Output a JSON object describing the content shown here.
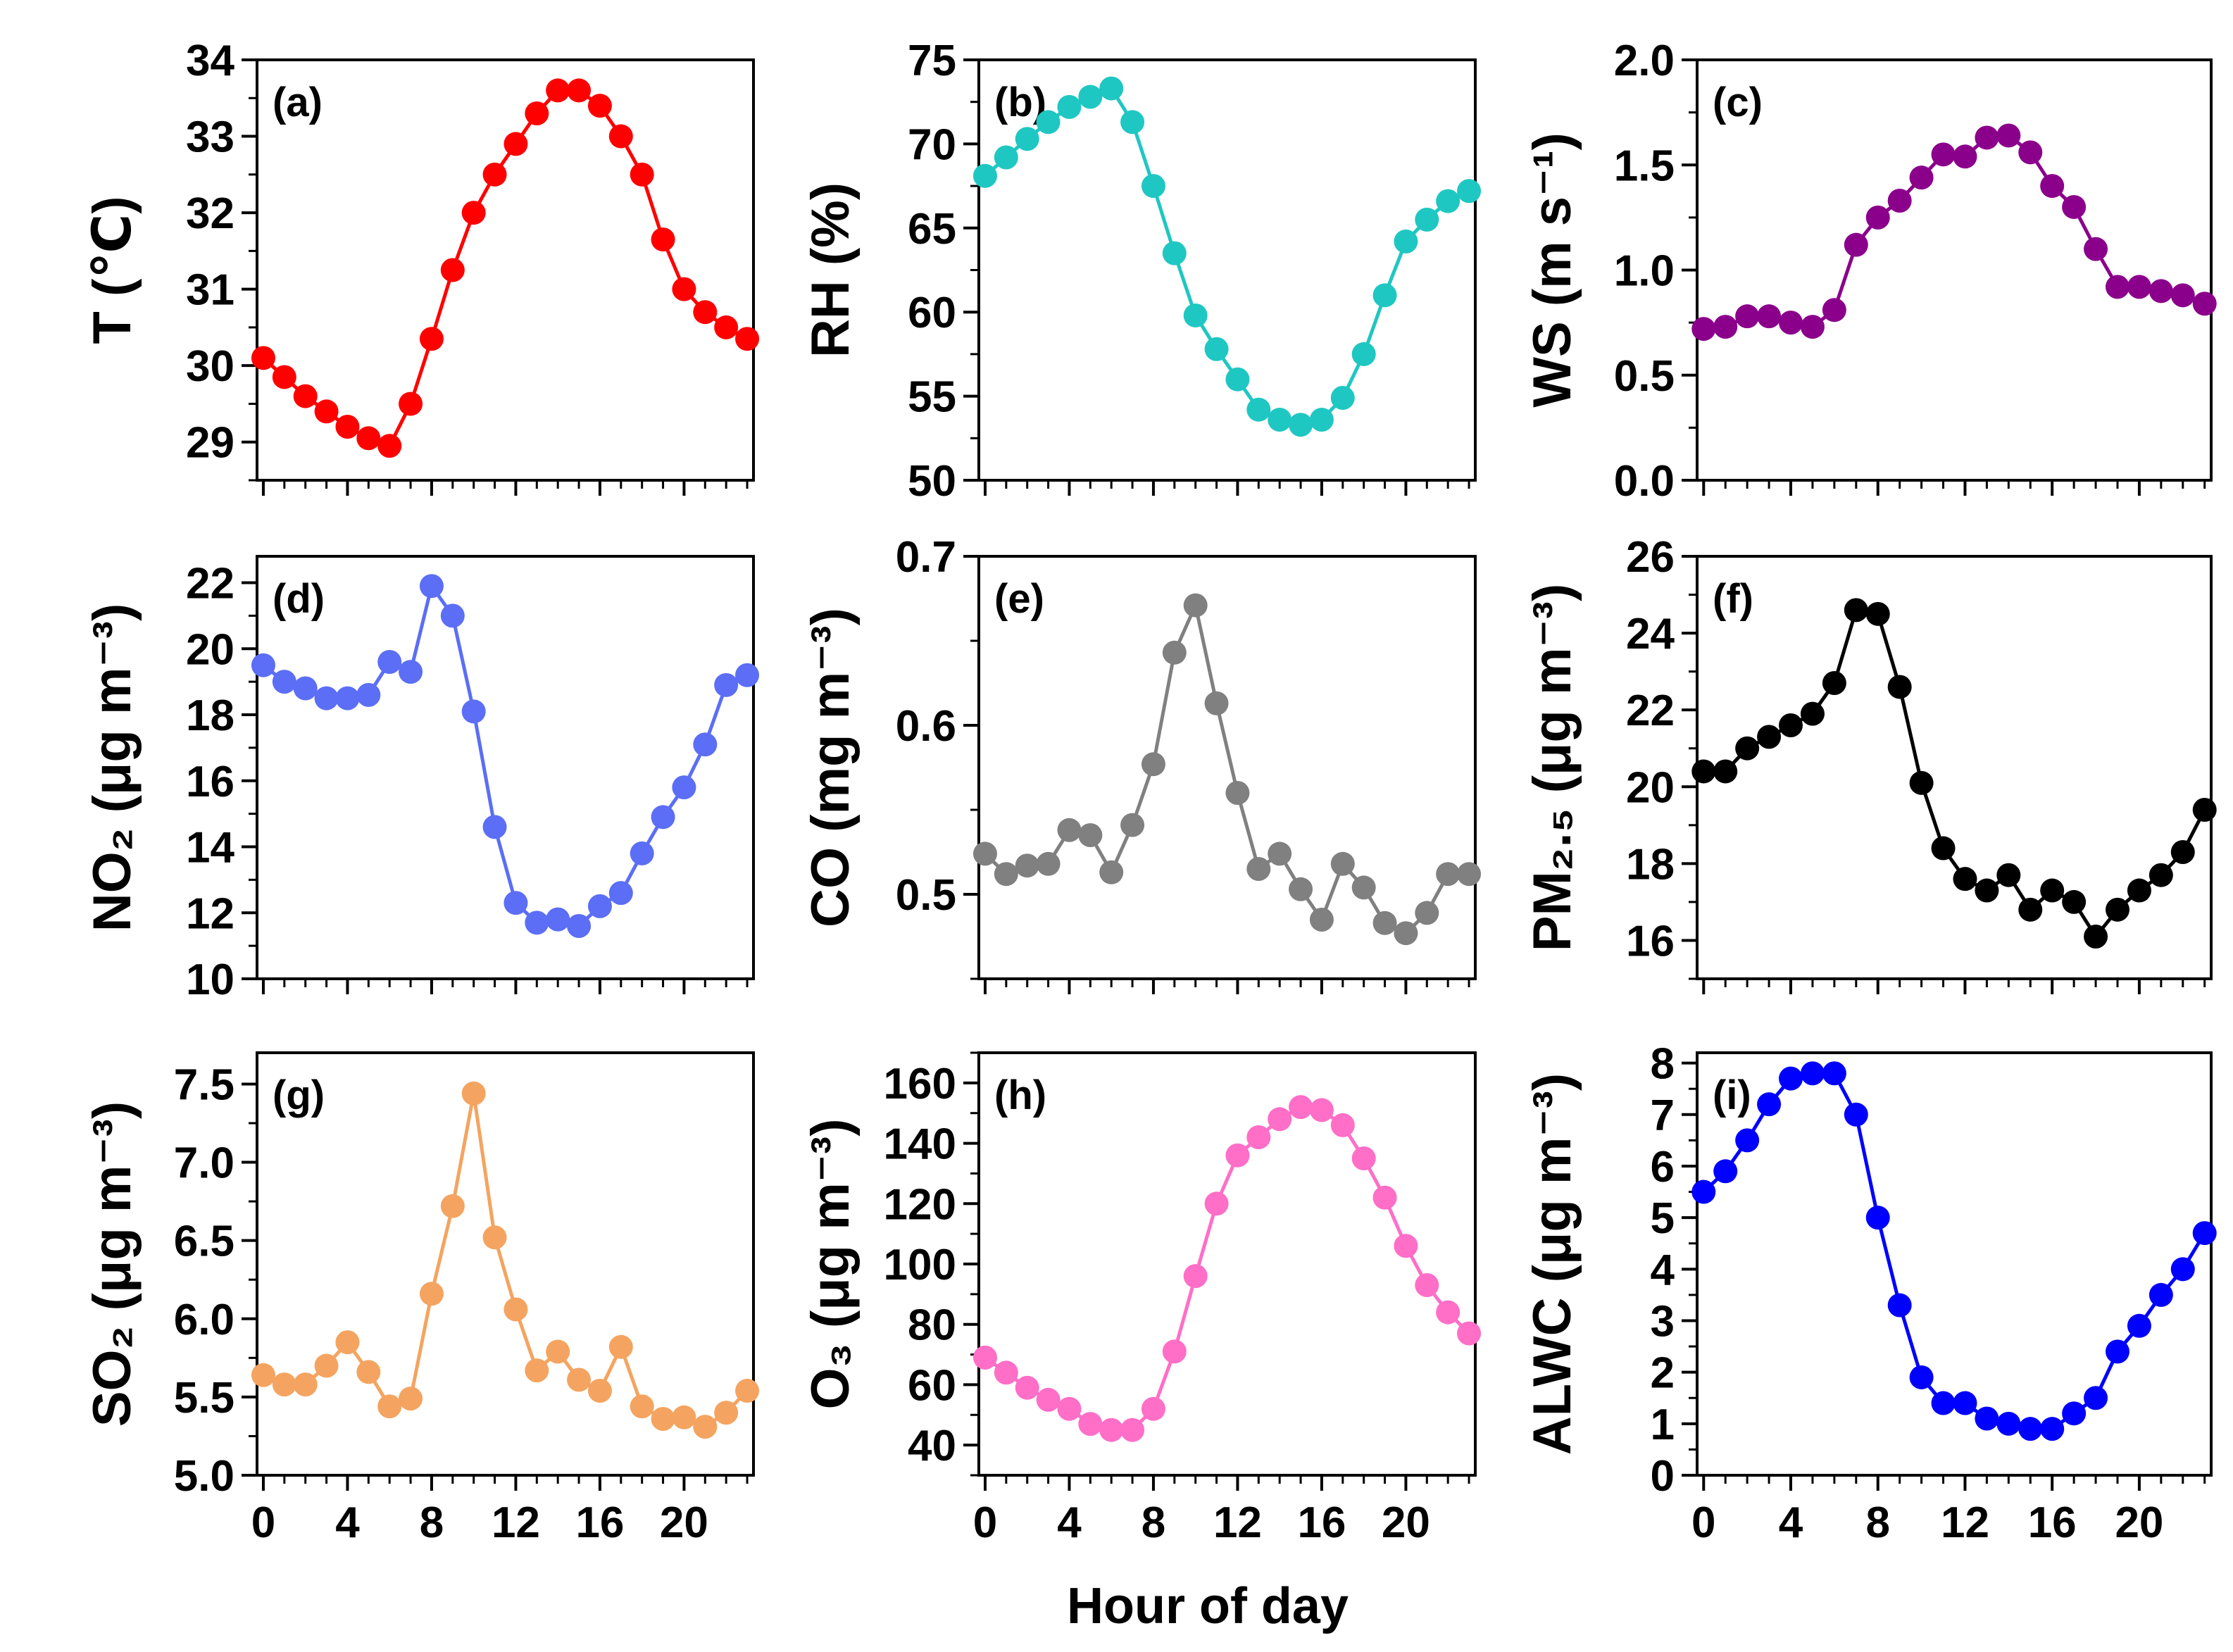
{
  "figure": {
    "x_axis_label": "Hour of day"
  },
  "chart_data": [
    {
      "id": "a",
      "type": "line",
      "panel_label": "(a)",
      "color": "#ff0000",
      "ylabel": "T (℃)",
      "ylim": [
        28.5,
        34
      ],
      "yticks": [
        "29",
        "30",
        "31",
        "32",
        "33",
        "34"
      ],
      "xlim": [
        -0.3,
        23.3
      ],
      "xticks": [
        "0",
        "4",
        "8",
        "12",
        "16",
        "20"
      ],
      "x": [
        0,
        1,
        2,
        3,
        4,
        5,
        6,
        7,
        8,
        9,
        10,
        11,
        12,
        13,
        14,
        15,
        16,
        17,
        18,
        19,
        20,
        21,
        22,
        23
      ],
      "values": [
        30.1,
        29.85,
        29.6,
        29.4,
        29.2,
        29.05,
        28.95,
        29.5,
        30.35,
        31.25,
        32.0,
        32.5,
        32.9,
        33.3,
        33.6,
        33.6,
        33.4,
        33.0,
        32.5,
        31.65,
        31.0,
        30.7,
        30.5,
        30.35
      ]
    },
    {
      "id": "b",
      "type": "line",
      "panel_label": "(b)",
      "color": "#1fc7c2",
      "ylabel": "RH (%)",
      "ylim": [
        50,
        75
      ],
      "yticks": [
        "50",
        "55",
        "60",
        "65",
        "70",
        "75"
      ],
      "xlim": [
        -0.3,
        23.3
      ],
      "xticks": [
        "0",
        "4",
        "8",
        "12",
        "16",
        "20"
      ],
      "x": [
        0,
        1,
        2,
        3,
        4,
        5,
        6,
        7,
        8,
        9,
        10,
        11,
        12,
        13,
        14,
        15,
        16,
        17,
        18,
        19,
        20,
        21,
        22,
        23
      ],
      "values": [
        68.1,
        69.2,
        70.3,
        71.3,
        72.2,
        72.8,
        73.3,
        71.3,
        67.5,
        63.5,
        59.8,
        57.8,
        56.0,
        54.2,
        53.6,
        53.3,
        53.6,
        54.9,
        57.5,
        61.0,
        64.2,
        65.5,
        66.6,
        67.2
      ]
    },
    {
      "id": "c",
      "type": "line",
      "panel_label": "(c)",
      "color": "#8b008b",
      "ylabel": "WS (m s⁻¹)",
      "ylim": [
        0,
        2.0
      ],
      "yticks": [
        "0.0",
        "0.5",
        "1.0",
        "1.5",
        "2.0"
      ],
      "xlim": [
        -0.3,
        23.3
      ],
      "xticks": [
        "0",
        "4",
        "8",
        "12",
        "16",
        "20"
      ],
      "x": [
        0,
        1,
        2,
        3,
        4,
        5,
        6,
        7,
        8,
        9,
        10,
        11,
        12,
        13,
        14,
        15,
        16,
        17,
        18,
        19,
        20,
        21,
        22,
        23
      ],
      "values": [
        0.72,
        0.73,
        0.78,
        0.78,
        0.75,
        0.73,
        0.81,
        1.12,
        1.25,
        1.33,
        1.44,
        1.55,
        1.54,
        1.63,
        1.64,
        1.56,
        1.4,
        1.3,
        1.1,
        0.92,
        0.92,
        0.9,
        0.88,
        0.84
      ]
    },
    {
      "id": "d",
      "type": "line",
      "panel_label": "(d)",
      "color": "#5b6ef5",
      "ylabel": "NO₂ (μg m⁻³)",
      "ylim": [
        10,
        22.8
      ],
      "yticks": [
        "10",
        "12",
        "14",
        "16",
        "18",
        "20",
        "22"
      ],
      "xlim": [
        -0.3,
        23.3
      ],
      "xticks": [
        "0",
        "4",
        "8",
        "12",
        "16",
        "20"
      ],
      "x": [
        0,
        1,
        2,
        3,
        4,
        5,
        6,
        7,
        8,
        9,
        10,
        11,
        12,
        13,
        14,
        15,
        16,
        17,
        18,
        19,
        20,
        21,
        22,
        23
      ],
      "values": [
        19.5,
        19.0,
        18.8,
        18.5,
        18.5,
        18.6,
        19.6,
        19.3,
        21.9,
        21.0,
        18.1,
        14.6,
        12.3,
        11.7,
        11.8,
        11.6,
        12.2,
        12.6,
        13.8,
        14.9,
        15.8,
        17.1,
        18.9,
        19.2
      ]
    },
    {
      "id": "e",
      "type": "line",
      "panel_label": "(e)",
      "color": "#808080",
      "ylabel": "CO (mg m⁻³)",
      "ylim": [
        0.45,
        0.7
      ],
      "yticks": [
        "0.5",
        "0.6",
        "0.7"
      ],
      "xlim": [
        -0.3,
        23.3
      ],
      "xticks": [
        "0",
        "4",
        "8",
        "12",
        "16",
        "20"
      ],
      "x": [
        0,
        1,
        2,
        3,
        4,
        5,
        6,
        7,
        8,
        9,
        10,
        11,
        12,
        13,
        14,
        15,
        16,
        17,
        18,
        19,
        20,
        21,
        22,
        23
      ],
      "values": [
        0.524,
        0.512,
        0.517,
        0.518,
        0.538,
        0.535,
        0.513,
        0.541,
        0.577,
        0.643,
        0.671,
        0.613,
        0.56,
        0.515,
        0.524,
        0.503,
        0.485,
        0.518,
        0.504,
        0.483,
        0.477,
        0.489,
        0.512,
        0.512
      ]
    },
    {
      "id": "f",
      "type": "line",
      "panel_label": "(f)",
      "color": "#000000",
      "ylabel": "PM₂.₅ (μg m⁻³)",
      "ylim": [
        15,
        26
      ],
      "yticks": [
        "16",
        "18",
        "20",
        "22",
        "24",
        "26"
      ],
      "xlim": [
        -0.3,
        23.3
      ],
      "xticks": [
        "0",
        "4",
        "8",
        "12",
        "16",
        "20"
      ],
      "x": [
        0,
        1,
        2,
        3,
        4,
        5,
        6,
        7,
        8,
        9,
        10,
        11,
        12,
        13,
        14,
        15,
        16,
        17,
        18,
        19,
        20,
        21,
        22,
        23
      ],
      "values": [
        20.4,
        20.4,
        21.0,
        21.3,
        21.6,
        21.9,
        22.7,
        24.6,
        24.5,
        22.6,
        20.1,
        18.4,
        17.6,
        17.3,
        17.7,
        16.8,
        17.3,
        17.0,
        16.1,
        16.8,
        17.3,
        17.7,
        18.3,
        19.4
      ]
    },
    {
      "id": "g",
      "type": "line",
      "panel_label": "(g)",
      "color": "#f4a460",
      "ylabel": "SO₂ (μg m⁻³)",
      "ylim": [
        5.0,
        7.7
      ],
      "yticks": [
        "5.0",
        "5.5",
        "6.0",
        "6.5",
        "7.0",
        "7.5"
      ],
      "xlim": [
        -0.3,
        23.3
      ],
      "xticks": [
        "0",
        "4",
        "8",
        "12",
        "16",
        "20"
      ],
      "x": [
        0,
        1,
        2,
        3,
        4,
        5,
        6,
        7,
        8,
        9,
        10,
        11,
        12,
        13,
        14,
        15,
        16,
        17,
        18,
        19,
        20,
        21,
        22,
        23
      ],
      "values": [
        5.64,
        5.58,
        5.58,
        5.7,
        5.85,
        5.66,
        5.44,
        5.49,
        6.16,
        6.72,
        7.44,
        6.52,
        6.06,
        5.67,
        5.79,
        5.61,
        5.54,
        5.82,
        5.44,
        5.36,
        5.37,
        5.31,
        5.4,
        5.54
      ]
    },
    {
      "id": "h",
      "type": "line",
      "panel_label": "(h)",
      "color": "#ff6ec7",
      "ylabel": "O₃ (μg m⁻³)",
      "ylim": [
        30,
        170
      ],
      "yticks": [
        "40",
        "60",
        "80",
        "100",
        "120",
        "140",
        "160"
      ],
      "xlim": [
        -0.3,
        23.3
      ],
      "xticks": [
        "0",
        "4",
        "8",
        "12",
        "16",
        "20"
      ],
      "x": [
        0,
        1,
        2,
        3,
        4,
        5,
        6,
        7,
        8,
        9,
        10,
        11,
        12,
        13,
        14,
        15,
        16,
        17,
        18,
        19,
        20,
        21,
        22,
        23
      ],
      "values": [
        69,
        64,
        59,
        55,
        52,
        47,
        45,
        45,
        52,
        71,
        96,
        120,
        136,
        142,
        148,
        152,
        151,
        146,
        135,
        122,
        106,
        93,
        84,
        77
      ]
    },
    {
      "id": "i",
      "type": "line",
      "panel_label": "(i)",
      "color": "#0000ff",
      "ylabel": "ALWC (μg m⁻³)",
      "ylim": [
        0,
        8.2
      ],
      "yticks": [
        "0",
        "1",
        "2",
        "3",
        "4",
        "5",
        "6",
        "7",
        "8"
      ],
      "xlim": [
        -0.3,
        23.3
      ],
      "xticks": [
        "0",
        "4",
        "8",
        "12",
        "16",
        "20"
      ],
      "x": [
        0,
        1,
        2,
        3,
        4,
        5,
        6,
        7,
        8,
        9,
        10,
        11,
        12,
        13,
        14,
        15,
        16,
        17,
        18,
        19,
        20,
        21,
        22,
        23
      ],
      "values": [
        5.5,
        5.9,
        6.5,
        7.2,
        7.7,
        7.8,
        7.8,
        7.0,
        5.0,
        3.3,
        1.9,
        1.4,
        1.4,
        1.1,
        1.0,
        0.9,
        0.9,
        1.2,
        1.5,
        2.4,
        2.9,
        3.5,
        4.0,
        4.7
      ]
    }
  ]
}
